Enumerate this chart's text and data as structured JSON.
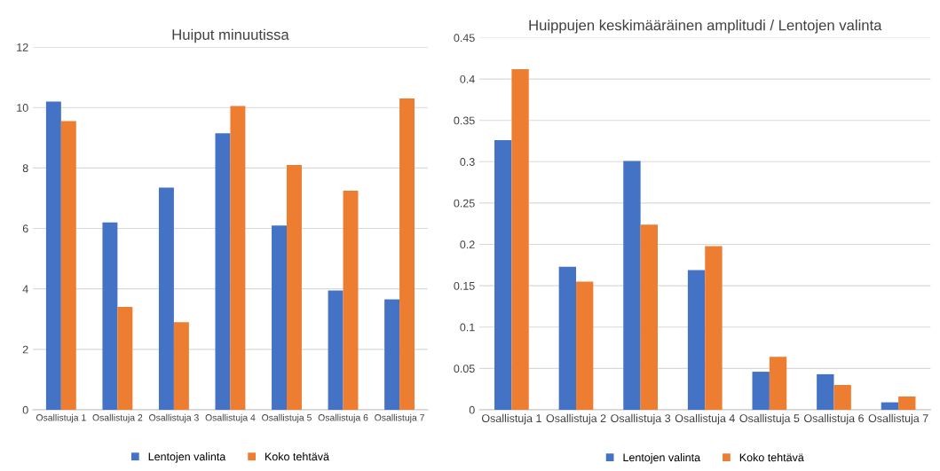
{
  "chart_data": [
    {
      "type": "bar",
      "title": "Huiput minuutissa",
      "categories": [
        "Osallistuja 1",
        "Osallistuja 2",
        "Osallistuja 3",
        "Osallistuja 4",
        "Osallistuja 5",
        "Osallistuja 6",
        "Osallistuja 7"
      ],
      "series": [
        {
          "name": "Lentojen valinta",
          "color": "#4472c4",
          "values": [
            10.2,
            6.2,
            7.35,
            9.15,
            6.1,
            3.95,
            3.65
          ]
        },
        {
          "name": "Koko tehtävä",
          "color": "#ed7d31",
          "values": [
            9.55,
            3.4,
            2.9,
            10.05,
            8.1,
            7.25,
            10.3
          ]
        }
      ],
      "ylim": [
        0,
        12
      ],
      "yticks": [
        0,
        2,
        4,
        6,
        8,
        10,
        12
      ],
      "grid": "y",
      "legend": "bottom"
    },
    {
      "type": "bar",
      "title": "Huippujen keskimääräinen amplitudi / Lentojen valinta",
      "categories": [
        "Osallistuja 1",
        "Osallistuja 2",
        "Osallistuja 3",
        "Osallistuja 4",
        "Osallistuja 5",
        "Osallistuja 6",
        "Osallistuja 7"
      ],
      "series": [
        {
          "name": "Lentojen valinta",
          "color": "#4472c4",
          "values": [
            0.326,
            0.173,
            0.301,
            0.169,
            0.046,
            0.043,
            0.009
          ]
        },
        {
          "name": "Koko tehtävä",
          "color": "#ed7d31",
          "values": [
            0.412,
            0.155,
            0.224,
            0.198,
            0.064,
            0.03,
            0.016
          ]
        }
      ],
      "ylim": [
        0,
        0.45
      ],
      "yticks": [
        0,
        0.05,
        0.1,
        0.15,
        0.2,
        0.25,
        0.3,
        0.35,
        0.4,
        0.45
      ],
      "grid": "y",
      "legend": "bottom"
    }
  ]
}
